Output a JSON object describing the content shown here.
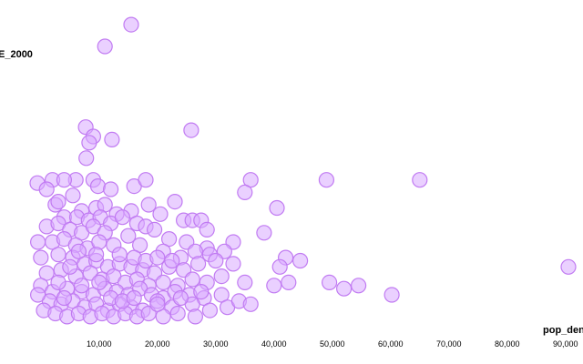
{
  "colors": {
    "point_fill": "#d9a9ff",
    "point_stroke": "#c17bf2"
  },
  "chart_data": {
    "type": "scatter",
    "title": "",
    "xlabel": "pop_den",
    "ylabel": "E_2000",
    "xlim": [
      -7000,
      93000
    ],
    "ylim": [
      -4,
      100
    ],
    "xticks": [
      10000,
      20000,
      30000,
      40000,
      50000,
      60000,
      70000,
      80000,
      90000
    ],
    "xtick_labels": [
      "10,000",
      "20,000",
      "30,000",
      "40,000",
      "50,000",
      "60,000",
      "70,000",
      "80,000",
      "90,000"
    ],
    "grid": false,
    "legend": "none",
    "series": [
      {
        "points": [
          [
            15500,
            95
          ],
          [
            11000,
            88
          ],
          [
            7700,
            62
          ],
          [
            9000,
            59
          ],
          [
            8300,
            57
          ],
          [
            12200,
            58
          ],
          [
            25800,
            61
          ],
          [
            7800,
            52
          ],
          [
            9000,
            45
          ],
          [
            9800,
            43
          ],
          [
            12000,
            42
          ],
          [
            6000,
            45
          ],
          [
            2000,
            45
          ],
          [
            4000,
            45
          ],
          [
            16000,
            43
          ],
          [
            18000,
            45
          ],
          [
            -600,
            44
          ],
          [
            1000,
            42
          ],
          [
            36000,
            45
          ],
          [
            35000,
            41
          ],
          [
            49000,
            45
          ],
          [
            65000,
            45
          ],
          [
            5500,
            40
          ],
          [
            18500,
            37
          ],
          [
            23000,
            38
          ],
          [
            40500,
            36
          ],
          [
            2500,
            37
          ],
          [
            3000,
            38
          ],
          [
            7000,
            35
          ],
          [
            9500,
            36
          ],
          [
            11000,
            37
          ],
          [
            13000,
            34
          ],
          [
            15500,
            35
          ],
          [
            20500,
            34
          ],
          [
            24500,
            32
          ],
          [
            26000,
            32
          ],
          [
            27500,
            32
          ],
          [
            28500,
            29
          ],
          [
            38300,
            28
          ],
          [
            4000,
            33
          ],
          [
            6200,
            33
          ],
          [
            8200,
            32
          ],
          [
            10200,
            33
          ],
          [
            12000,
            31
          ],
          [
            14000,
            33
          ],
          [
            16500,
            31
          ],
          [
            18000,
            30
          ],
          [
            1000,
            30
          ],
          [
            3000,
            31
          ],
          [
            5000,
            29
          ],
          [
            7000,
            28
          ],
          [
            9000,
            30
          ],
          [
            11000,
            28
          ],
          [
            15000,
            27
          ],
          [
            19500,
            29
          ],
          [
            22000,
            26
          ],
          [
            25000,
            25
          ],
          [
            28500,
            23
          ],
          [
            33000,
            25
          ],
          [
            2000,
            25
          ],
          [
            4000,
            26
          ],
          [
            6000,
            24
          ],
          [
            8000,
            23
          ],
          [
            10000,
            25
          ],
          [
            12500,
            24
          ],
          [
            17000,
            24
          ],
          [
            21000,
            22
          ],
          [
            24000,
            20
          ],
          [
            26500,
            22
          ],
          [
            29000,
            21
          ],
          [
            31500,
            22
          ],
          [
            42000,
            20
          ],
          [
            44500,
            19
          ],
          [
            0,
            20
          ],
          [
            3000,
            21
          ],
          [
            5500,
            20
          ],
          [
            7500,
            18
          ],
          [
            9500,
            19
          ],
          [
            11500,
            17
          ],
          [
            13500,
            18
          ],
          [
            15500,
            17
          ],
          [
            17500,
            16
          ],
          [
            19500,
            15
          ],
          [
            22000,
            17
          ],
          [
            24500,
            16
          ],
          [
            27000,
            18
          ],
          [
            30000,
            19
          ],
          [
            33000,
            18
          ],
          [
            41000,
            17
          ],
          [
            1000,
            15
          ],
          [
            3500,
            16
          ],
          [
            6000,
            14
          ],
          [
            8500,
            15
          ],
          [
            10500,
            13
          ],
          [
            12500,
            14
          ],
          [
            14500,
            12
          ],
          [
            16500,
            13
          ],
          [
            18500,
            11
          ],
          [
            21000,
            12
          ],
          [
            23500,
            11
          ],
          [
            26000,
            13
          ],
          [
            28500,
            12
          ],
          [
            31000,
            14
          ],
          [
            35000,
            12
          ],
          [
            40000,
            11
          ],
          [
            42500,
            12
          ],
          [
            49500,
            12
          ],
          [
            52000,
            10
          ],
          [
            54500,
            11
          ],
          [
            0,
            11
          ],
          [
            2000,
            9
          ],
          [
            4500,
            10
          ],
          [
            7000,
            9
          ],
          [
            9000,
            8
          ],
          [
            11000,
            10
          ],
          [
            13000,
            9
          ],
          [
            15000,
            8
          ],
          [
            17000,
            10
          ],
          [
            19000,
            8
          ],
          [
            21000,
            7
          ],
          [
            23000,
            9
          ],
          [
            25500,
            8
          ],
          [
            28000,
            7
          ],
          [
            31000,
            8
          ],
          [
            60200,
            8
          ],
          [
            90500,
            17
          ],
          [
            1500,
            6
          ],
          [
            3500,
            5
          ],
          [
            5500,
            6
          ],
          [
            7500,
            4
          ],
          [
            9500,
            5
          ],
          [
            11500,
            3
          ],
          [
            13500,
            5
          ],
          [
            15500,
            4
          ],
          [
            17500,
            3
          ],
          [
            20000,
            6
          ],
          [
            22500,
            4
          ],
          [
            26000,
            5
          ],
          [
            29000,
            3
          ],
          [
            32000,
            4
          ],
          [
            34000,
            6
          ],
          [
            36000,
            5
          ],
          [
            500,
            3
          ],
          [
            2500,
            2
          ],
          [
            4500,
            1
          ],
          [
            6500,
            2
          ],
          [
            8500,
            1
          ],
          [
            10500,
            2
          ],
          [
            12500,
            1
          ],
          [
            14500,
            2
          ],
          [
            16500,
            1
          ],
          [
            18500,
            2
          ],
          [
            21000,
            1
          ],
          [
            23500,
            2
          ],
          [
            26500,
            1
          ],
          [
            -500,
            25
          ],
          [
            -500,
            8
          ],
          [
            3000,
            12
          ],
          [
            5000,
            17
          ],
          [
            6500,
            22
          ],
          [
            9500,
            21
          ],
          [
            13500,
            21
          ],
          [
            16000,
            20
          ],
          [
            18000,
            19
          ],
          [
            20000,
            20
          ],
          [
            22500,
            19
          ],
          [
            4000,
            7
          ],
          [
            7000,
            11
          ],
          [
            10000,
            12
          ],
          [
            12000,
            7
          ],
          [
            14000,
            6
          ],
          [
            16000,
            7
          ],
          [
            20000,
            5
          ],
          [
            24000,
            7
          ],
          [
            27500,
            9
          ]
        ]
      }
    ]
  }
}
